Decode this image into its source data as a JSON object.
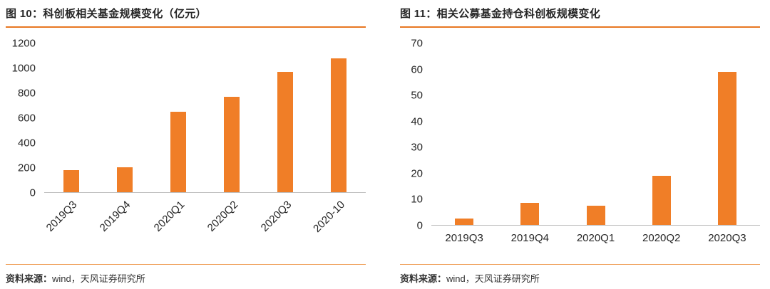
{
  "colors": {
    "accent": "#E87722",
    "bar": "#F07E27",
    "axis_line": "#BFBFBF",
    "footer_rule": "#F0A35E",
    "text": "#262626"
  },
  "source": {
    "label": "资料来源：",
    "text": "wind，天风证券研究所"
  },
  "chart_data": [
    {
      "type": "bar",
      "title": "图 10：科创板相关基金规模变化（亿元）",
      "categories": [
        "2019Q3",
        "2019Q4",
        "2020Q1",
        "2020Q2",
        "2020Q3",
        "2020-10"
      ],
      "values": [
        180,
        200,
        650,
        770,
        970,
        1080
      ],
      "xlabel": "",
      "ylabel": "",
      "ylim": [
        0,
        1200
      ],
      "ytick_step": 200,
      "x_label_rotation": -45,
      "grid": false,
      "legend": false
    },
    {
      "type": "bar",
      "title": "图 11：相关公募基金持仓科创板规模变化",
      "categories": [
        "2019Q3",
        "2019Q4",
        "2020Q1",
        "2020Q2",
        "2020Q3"
      ],
      "values": [
        2.5,
        8.5,
        7.5,
        19,
        59
      ],
      "xlabel": "",
      "ylabel": "",
      "ylim": [
        0,
        70
      ],
      "ytick_step": 10,
      "x_label_rotation": 0,
      "grid": false,
      "legend": false
    }
  ]
}
